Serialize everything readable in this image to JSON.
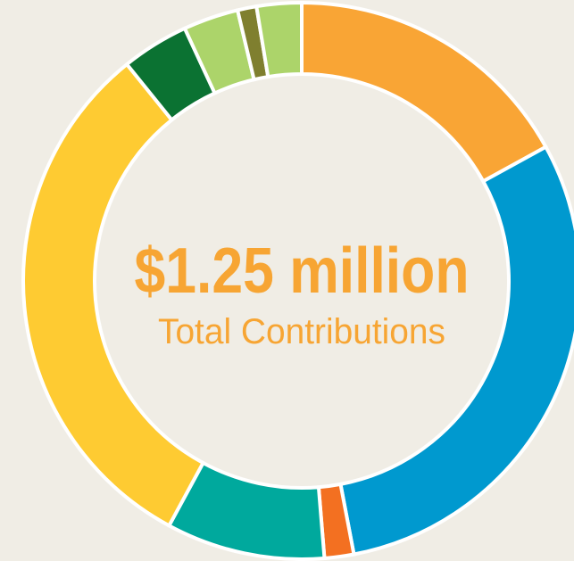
{
  "chart_data": {
    "type": "donut",
    "center_label": "$1.25 million",
    "center_sublabel": "Total Contributions",
    "values": [
      17,
      30,
      1.7,
      9.2,
      31.3,
      3.9,
      3.2,
      1.1,
      2.6
    ],
    "colors": [
      "#f9a535",
      "#0099cf",
      "#f37021",
      "#00a99d",
      "#fecb32",
      "#0b7232",
      "#acd46a",
      "#7f7f2f",
      "#acd46a"
    ]
  }
}
